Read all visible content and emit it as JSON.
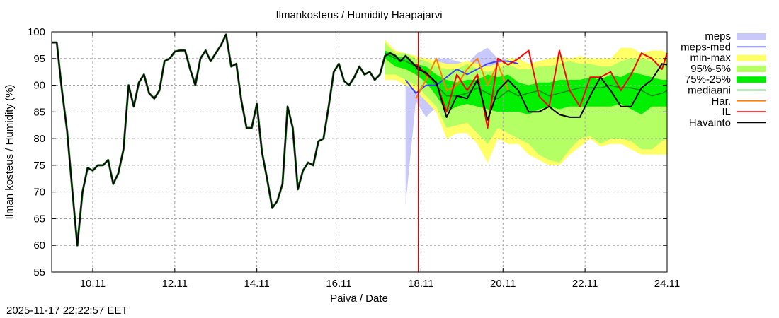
{
  "chart_data": {
    "type": "area",
    "title": "Ilmankosteus / Humidity  Haapajarvi",
    "xlabel": "Päivä / Date",
    "ylabel": "Ilman kosteus / Humidity (%)",
    "xlim": [
      "2025-11-09T00:00",
      "2025-11-24T00:00"
    ],
    "ylim": [
      55,
      100
    ],
    "yticks": [
      55,
      60,
      65,
      70,
      75,
      80,
      85,
      90,
      95,
      100
    ],
    "xticks": [
      {
        "date": "2025-11-10T00:00",
        "label": "10.11"
      },
      {
        "date": "2025-11-12T00:00",
        "label": "12.11"
      },
      {
        "date": "2025-11-14T00:00",
        "label": "14.11"
      },
      {
        "date": "2025-11-16T00:00",
        "label": "16.11"
      },
      {
        "date": "2025-11-18T00:00",
        "label": "18.11"
      },
      {
        "date": "2025-11-20T00:00",
        "label": "20.11"
      },
      {
        "date": "2025-11-22T00:00",
        "label": "22.11"
      },
      {
        "date": "2025-11-24T00:00",
        "label": "24.11"
      }
    ],
    "grid": true,
    "legend_position": "right",
    "now_marker": "2025-11-17T22:22",
    "observation": {
      "name": "Havainto",
      "color": "#000000",
      "start": "2025-11-09T00:00",
      "step_hours": 3,
      "values": [
        98,
        98,
        89,
        81.5,
        70.5,
        60,
        70,
        74.5,
        74,
        75,
        75,
        76,
        71.5,
        73.5,
        78,
        90,
        86,
        90.5,
        92,
        88.5,
        87.5,
        89,
        94.5,
        95,
        96.3,
        96.5,
        96.5,
        93,
        90,
        95,
        96.5,
        94.5,
        96,
        97.5,
        99.5,
        93.5,
        94,
        87,
        82,
        82,
        86.5,
        77.5,
        72.5,
        67,
        68.3,
        71.5,
        86,
        82,
        70.5,
        74,
        75.5,
        75,
        79.5,
        80,
        86,
        92.5,
        94,
        90.8,
        90,
        91.5,
        93.5,
        92,
        92.5,
        91,
        92,
        95.5,
        96,
        95.5,
        94.5,
        95.5,
        94.5,
        93.5,
        93.2
      ]
    },
    "forecast_times": [
      "2025-11-17T03:00",
      "2025-11-17T09:00",
      "2025-11-17T15:00",
      "2025-11-17T21:00",
      "2025-11-18T03:00",
      "2025-11-18T09:00",
      "2025-11-18T15:00",
      "2025-11-18T21:00",
      "2025-11-19T03:00",
      "2025-11-19T09:00",
      "2025-11-19T15:00",
      "2025-11-19T21:00",
      "2025-11-20T03:00",
      "2025-11-20T09:00",
      "2025-11-20T15:00",
      "2025-11-20T21:00",
      "2025-11-21T03:00",
      "2025-11-21T09:00",
      "2025-11-21T15:00",
      "2025-11-21T21:00",
      "2025-11-22T03:00",
      "2025-11-22T09:00",
      "2025-11-22T15:00",
      "2025-11-22T21:00",
      "2025-11-23T03:00",
      "2025-11-23T09:00",
      "2025-11-23T15:00",
      "2025-11-23T21:00",
      "2025-11-24T00:00"
    ],
    "bands": [
      {
        "name": "meps",
        "color": "#c8c8fa",
        "upper": [
          null,
          null,
          95,
          95,
          93,
          95,
          95,
          94.5,
          94,
          96,
          97,
          95,
          95,
          94.5,
          null,
          null,
          null,
          null,
          null,
          null,
          null,
          null,
          null,
          null,
          null,
          null,
          null,
          null,
          null
        ],
        "lower": [
          null,
          null,
          67.5,
          87,
          84,
          86,
          83,
          84,
          83,
          85,
          82,
          82,
          80,
          79.5,
          null,
          null,
          null,
          null,
          null,
          null,
          null,
          null,
          null,
          null,
          null,
          null,
          null,
          null,
          null
        ]
      },
      {
        "name": "min-max",
        "color": "#ffff66",
        "upper": [
          98.5,
          96.5,
          96,
          95.5,
          95,
          94.5,
          94,
          94,
          94.5,
          94,
          93.5,
          94,
          95,
          95,
          94,
          94.5,
          95,
          95.5,
          95,
          95.5,
          95,
          95,
          95,
          97,
          97,
          96,
          96.5,
          96.5,
          96
        ],
        "lower": [
          91,
          91,
          90,
          89,
          87,
          85,
          80,
          81,
          81,
          79,
          75.5,
          80,
          79,
          79,
          77,
          76,
          75,
          75,
          77,
          78.5,
          80,
          78.5,
          79,
          79,
          78,
          77,
          77,
          77,
          77
        ]
      },
      {
        "name": "95%-5%",
        "color": "#b4ff64",
        "upper": [
          98,
          96,
          96,
          95,
          94.5,
          93.5,
          93,
          93,
          94,
          93,
          92.5,
          93,
          94,
          93,
          93,
          93.5,
          93.5,
          94,
          94.5,
          94,
          94,
          93.5,
          93.5,
          94.5,
          95,
          95,
          94.5,
          94,
          94
        ],
        "lower": [
          92,
          92,
          91,
          90,
          88,
          86,
          82,
          82.5,
          83,
          81,
          79,
          82,
          81,
          80,
          79,
          77,
          76,
          75.5,
          78,
          80,
          80.5,
          79,
          80,
          80,
          79.5,
          78,
          78,
          79.5,
          80
        ]
      },
      {
        "name": "75%-25%",
        "color": "#00f000",
        "upper": [
          96.5,
          95.5,
          95,
          94,
          93.5,
          92,
          91,
          90.5,
          91,
          91,
          92,
          91.5,
          92,
          90.5,
          90,
          90.5,
          90.5,
          91,
          91,
          91,
          91.5,
          91,
          92,
          91.5,
          92.5,
          92,
          91.5,
          91,
          91
        ],
        "lower": [
          95,
          93.5,
          93,
          92,
          90.5,
          88,
          85,
          86,
          86.5,
          86,
          85.5,
          85,
          85,
          85,
          84.5,
          85.5,
          86,
          85.5,
          86,
          86,
          86,
          86,
          86,
          86.5,
          85.5,
          84.5,
          86,
          86,
          86
        ]
      }
    ],
    "series": [
      {
        "name": "mediaani",
        "color": "#1a8a1a",
        "values": [
          96,
          95,
          94.5,
          93.5,
          92.5,
          90,
          88,
          88,
          88.5,
          89.5,
          88.5,
          87.5,
          89,
          88,
          88.5,
          89,
          88,
          88.5,
          89,
          89.5,
          89.5,
          89.5,
          90,
          89.5,
          89.5,
          89,
          88,
          88.5,
          89
        ]
      },
      {
        "name": "meps-med",
        "color": "#4040ff",
        "values": [
          null,
          null,
          91,
          88.5,
          90,
          90,
          91.5,
          93,
          92,
          93,
          94,
          94.5,
          94.5,
          94,
          null,
          null,
          null,
          null,
          null,
          null,
          null,
          null,
          null,
          null,
          null,
          null,
          null,
          null,
          null
        ]
      },
      {
        "name": "Har.",
        "color": "#ff8000",
        "values": [
          null,
          null,
          null,
          87.5,
          91,
          95,
          89,
          90,
          93,
          95,
          90,
          94,
          89,
          null,
          null,
          null,
          null,
          null,
          null,
          null,
          null,
          null,
          null,
          null,
          null,
          null,
          null,
          null,
          null
        ]
      },
      {
        "name": "IL",
        "color": "#ff0000",
        "values": [
          null,
          null,
          null,
          94,
          92,
          90.5,
          85,
          92,
          89,
          92,
          82,
          95,
          93.8,
          95,
          96.5,
          88,
          86,
          96.5,
          89,
          86,
          91.5,
          91.5,
          92.5,
          89,
          92,
          96,
          95,
          93,
          96
        ]
      },
      {
        "color": "#000000",
        "values": [
          null,
          null,
          null,
          93.2,
          92.3,
          90.5,
          84,
          88,
          87.5,
          91,
          83.5,
          89,
          91,
          89,
          85,
          85,
          86,
          84.5,
          84,
          84,
          88,
          91.5,
          89,
          86,
          86,
          89.5,
          91,
          94,
          93.8
        ]
      }
    ],
    "legend": [
      {
        "label": "meps",
        "kind": "band",
        "color": "#c8c8fa"
      },
      {
        "label": "meps-med",
        "kind": "line",
        "color": "#4040ff"
      },
      {
        "label": "min-max",
        "kind": "band",
        "color": "#ffff66"
      },
      {
        "label": "95%-5%",
        "kind": "band",
        "color": "#b4ff64"
      },
      {
        "label": "75%-25%",
        "kind": "band",
        "color": "#00f000"
      },
      {
        "label": "mediaani",
        "kind": "line",
        "color": "#1a8a1a"
      },
      {
        "label": "Har.",
        "kind": "line",
        "color": "#ff8000"
      },
      {
        "label": "IL",
        "kind": "line",
        "color": "#ff0000"
      },
      {
        "label": "Havainto",
        "kind": "line",
        "color": "#000000"
      }
    ]
  },
  "footer": {
    "timestamp": "2025-11-17 22:22:57 EET"
  }
}
